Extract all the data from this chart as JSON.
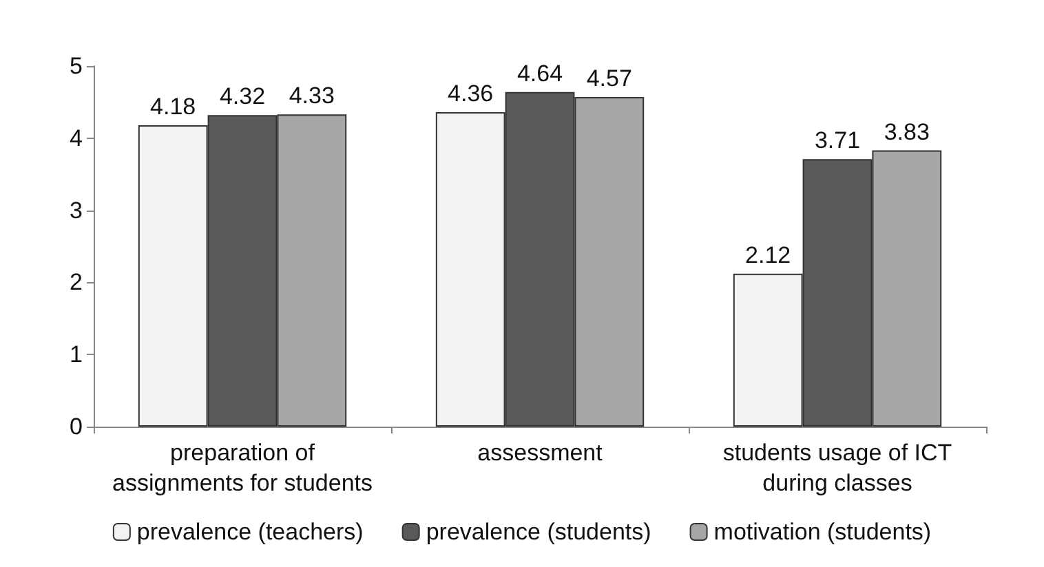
{
  "chart_data": {
    "type": "bar",
    "categories": [
      "preparation of\nassignments for students",
      "assessment",
      "students usage of ICT\nduring classes"
    ],
    "series": [
      {
        "name": "prevalence (teachers)",
        "color": "#f2f2f2",
        "values": [
          4.18,
          4.36,
          2.12
        ]
      },
      {
        "name": "prevalence (students)",
        "color": "#595959",
        "values": [
          4.32,
          4.64,
          3.71
        ]
      },
      {
        "name": "motivation (students)",
        "color": "#a6a6a6",
        "values": [
          4.33,
          4.57,
          3.83
        ]
      }
    ],
    "ylim": [
      0,
      5
    ],
    "yticks": [
      0,
      1,
      2,
      3,
      4,
      5
    ],
    "grid": false,
    "legend": "bottom",
    "data_labels": true
  }
}
